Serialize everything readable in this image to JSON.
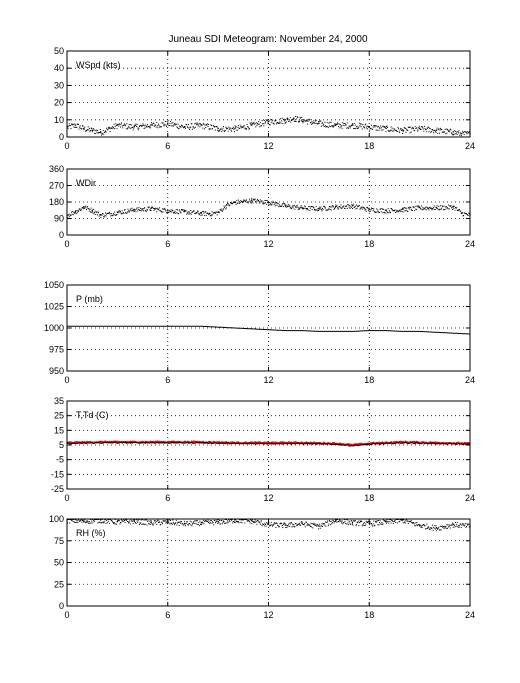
{
  "figure_title": "Juneau SDI Meteogram:  November 24, 2000",
  "x_ticks": [
    "0",
    "6",
    "12",
    "18",
    "24"
  ],
  "chart_data": [
    {
      "type": "scatter",
      "label": "WSpd (kts)",
      "xlim": [
        0,
        24
      ],
      "ylim": [
        0,
        50
      ],
      "y_ticks": [
        "0",
        "10",
        "20",
        "30",
        "40",
        "50"
      ],
      "grid": true,
      "series": [
        {
          "color": "#000000",
          "x": [
            0,
            0.5,
            1,
            1.5,
            2,
            2.5,
            3,
            4,
            5,
            6,
            7,
            8,
            9,
            10,
            11,
            12,
            13,
            13.5,
            14,
            15,
            16,
            17,
            18,
            19,
            20,
            21,
            22,
            23,
            23.5,
            24
          ],
          "values": [
            6,
            7,
            5,
            4,
            3,
            5,
            7,
            6,
            7,
            8,
            6,
            7,
            5,
            5,
            7,
            9,
            10,
            11,
            10,
            8,
            7,
            7,
            6,
            5,
            4,
            5,
            4,
            3,
            2,
            2
          ]
        }
      ]
    },
    {
      "type": "scatter",
      "label": "WDir",
      "xlim": [
        0,
        24
      ],
      "ylim": [
        0,
        360
      ],
      "y_ticks": [
        "0",
        "90",
        "180",
        "270",
        "360"
      ],
      "grid": true,
      "series": [
        {
          "color": "#000000",
          "x": [
            0,
            0.5,
            1,
            1.5,
            2,
            3,
            4,
            5,
            6,
            7,
            8,
            8.5,
            9,
            9.5,
            10,
            11,
            12,
            13,
            14,
            15,
            16,
            17,
            18,
            19,
            20,
            21,
            22,
            23,
            23.5,
            24
          ],
          "values": [
            110,
            130,
            155,
            135,
            110,
            125,
            140,
            145,
            135,
            128,
            120,
            118,
            125,
            165,
            180,
            190,
            180,
            160,
            150,
            145,
            155,
            160,
            140,
            135,
            140,
            150,
            150,
            155,
            120,
            110
          ]
        }
      ]
    },
    {
      "type": "line",
      "label": "P (mb)",
      "xlim": [
        0,
        24
      ],
      "ylim": [
        950,
        1050
      ],
      "y_ticks": [
        "950",
        "975",
        "1000",
        "1025",
        "1050"
      ],
      "grid": true,
      "series": [
        {
          "color": "#000000",
          "x": [
            0,
            3,
            6,
            8,
            9,
            10,
            11,
            12,
            13,
            14,
            15,
            16,
            17,
            18,
            19,
            20,
            21,
            22,
            23,
            24
          ],
          "values": [
            1002,
            1002,
            1002,
            1002,
            1001,
            1000,
            999,
            998,
            997,
            997,
            996,
            996,
            996,
            997,
            997,
            996,
            996,
            995,
            994,
            993
          ]
        }
      ]
    },
    {
      "type": "line",
      "label": "T,Td (C)",
      "xlim": [
        0,
        24
      ],
      "ylim": [
        -25,
        35
      ],
      "y_ticks": [
        "-25",
        "-15",
        "-5",
        "5",
        "15",
        "25",
        "35"
      ],
      "grid": true,
      "series": [
        {
          "color": "#ff0000",
          "x": [
            0,
            2,
            4,
            6,
            8,
            10,
            12,
            14,
            16,
            17,
            18,
            20,
            22,
            24
          ],
          "values": [
            6.5,
            7,
            7,
            7,
            7,
            6.5,
            6.5,
            6.5,
            6,
            5,
            6,
            7,
            6.5,
            6
          ]
        },
        {
          "color": "#000000",
          "x": [
            0,
            2,
            4,
            6,
            8,
            10,
            12,
            14,
            16,
            17,
            18,
            20,
            22,
            24
          ],
          "values": [
            6,
            6.5,
            6.5,
            6.5,
            6.5,
            6,
            6,
            6,
            5.5,
            4.5,
            5.5,
            6.5,
            6,
            5.5
          ]
        }
      ]
    },
    {
      "type": "scatter",
      "label": "RH (%)",
      "xlim": [
        0,
        24
      ],
      "ylim": [
        0,
        100
      ],
      "y_ticks": [
        "0",
        "25",
        "50",
        "75",
        "100"
      ],
      "grid": true,
      "series": [
        {
          "color": "#000000",
          "x": [
            0,
            1,
            2,
            3,
            4,
            5,
            6,
            7,
            8,
            9,
            10,
            11,
            12,
            13,
            14,
            15,
            16,
            17,
            18,
            19,
            20,
            21,
            22,
            23,
            24
          ],
          "values": [
            99,
            98,
            99,
            97,
            98,
            96,
            97,
            95,
            96,
            97,
            99,
            98,
            94,
            93,
            95,
            92,
            99,
            96,
            95,
            97,
            99,
            93,
            90,
            94,
            92
          ]
        }
      ]
    }
  ]
}
